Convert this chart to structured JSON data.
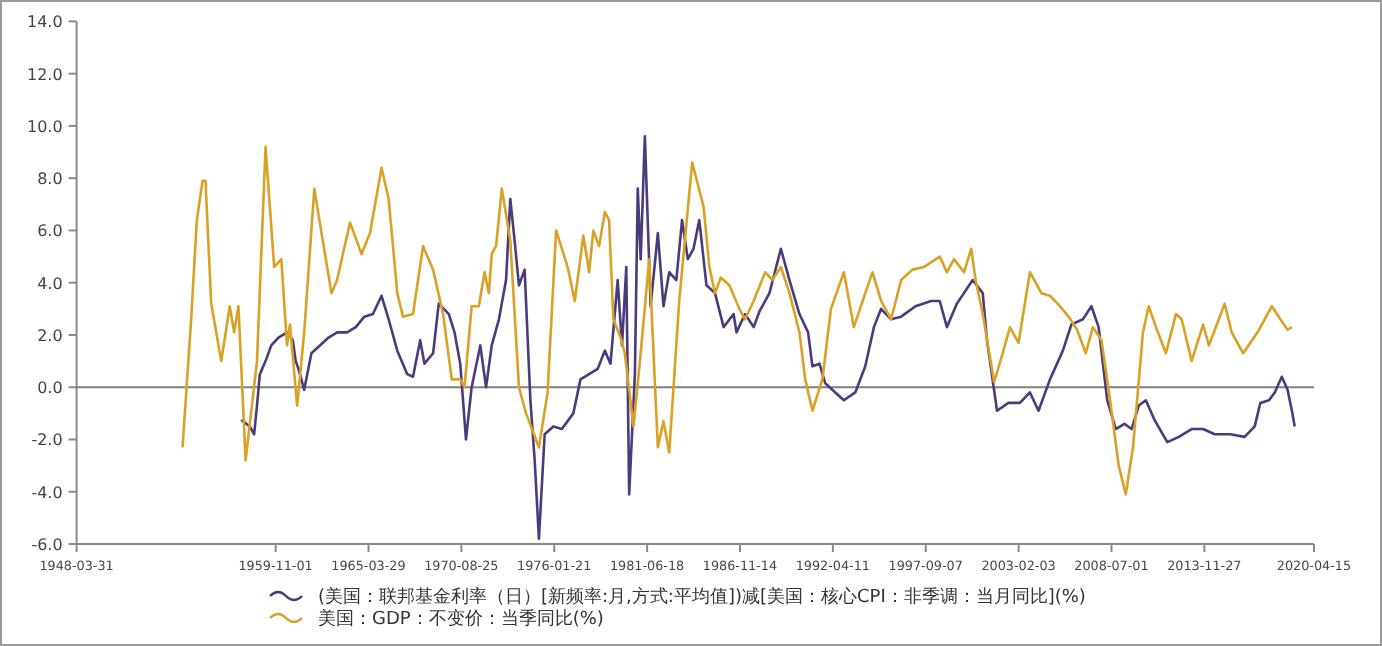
{
  "chart_data": {
    "type": "line",
    "legend": "bottom",
    "marker": "none",
    "line_style": "solid",
    "xlim": [
      "1948-03-31",
      "2020-04-15"
    ],
    "xticks": [
      "1948-03-31",
      "1959-11-01",
      "1965-03-29",
      "1970-08-25",
      "1976-01-21",
      "1981-06-18",
      "1986-11-14",
      "1992-04-11",
      "1997-09-07",
      "2003-02-03",
      "2008-07-01",
      "2013-11-27",
      "2020-04-15"
    ],
    "ylim": [
      -6,
      14
    ],
    "yticks": [
      {
        "value": -6,
        "label": "-6.0"
      },
      {
        "value": -4,
        "label": "-4.0"
      },
      {
        "value": -2,
        "label": "-2.0"
      },
      {
        "value": 0,
        "label": "0.0"
      },
      {
        "value": 2,
        "label": "2.0"
      },
      {
        "value": 4,
        "label": "4.0"
      },
      {
        "value": 6,
        "label": "6.0"
      },
      {
        "value": 8,
        "label": "8.0"
      },
      {
        "value": 10,
        "label": "10.0"
      },
      {
        "value": 12,
        "label": "12.0"
      },
      {
        "value": 14,
        "label": "14.0"
      }
    ],
    "ref_lines": [
      {
        "axis": "y",
        "value": 0,
        "color": "#808080"
      }
    ],
    "series": [
      {
        "name": "(美国：联邦基金利率（日）[新频率:月,方式:平均值])减[美国：核心CPI：非季调：当月同比](%)",
        "color": "#4b3b7c",
        "x": [
          "1957-11",
          "1958-05",
          "1958-08",
          "1958-10",
          "1958-12",
          "1959-04",
          "1959-08",
          "1960-01",
          "1960-07",
          "1960-11",
          "1961-01",
          "1961-03",
          "1961-07",
          "1961-12",
          "1962-06",
          "1962-12",
          "1963-06",
          "1964-01",
          "1964-07",
          "1965-01",
          "1965-07",
          "1966-01",
          "1966-06",
          "1966-12",
          "1967-07",
          "1967-11",
          "1968-04",
          "1968-07",
          "1969-01",
          "1969-05",
          "1969-12",
          "1970-04",
          "1970-08",
          "1970-12",
          "1971-04",
          "1971-10",
          "1972-02",
          "1972-06",
          "1972-11",
          "1973-04",
          "1973-07",
          "1973-10",
          "1974-01",
          "1974-05",
          "1974-09",
          "1974-12",
          "1975-03",
          "1975-07",
          "1976-01",
          "1976-07",
          "1977-03",
          "1977-08",
          "1978-02",
          "1978-08",
          "1979-01",
          "1979-05",
          "1979-10",
          "1980-01",
          "1980-04",
          "1980-06",
          "1980-10",
          "1980-12",
          "1981-02",
          "1981-05",
          "1981-09",
          "1982-02",
          "1982-06",
          "1982-10",
          "1983-03",
          "1983-07",
          "1983-11",
          "1984-03",
          "1984-07",
          "1984-12",
          "1985-06",
          "1985-12",
          "1986-07",
          "1986-09",
          "1987-03",
          "1987-09",
          "1988-01",
          "1988-08",
          "1989-04",
          "1989-10",
          "1990-05",
          "1990-11",
          "1991-02",
          "1991-07",
          "1991-11",
          "1992-06",
          "1992-12",
          "1993-08",
          "1994-03",
          "1994-09",
          "1995-02",
          "1995-09",
          "1996-04",
          "1997-02",
          "1998-01",
          "1998-07",
          "1998-12",
          "1999-07",
          "2000-06",
          "2001-01",
          "2001-04",
          "2001-11",
          "2002-07",
          "2003-03",
          "2003-10",
          "2004-04",
          "2004-12",
          "2005-09",
          "2006-03",
          "2006-11",
          "2007-05",
          "2007-10",
          "2008-04",
          "2008-10",
          "2009-04",
          "2009-09",
          "2010-02",
          "2010-07",
          "2011-01",
          "2011-10",
          "2012-06",
          "2013-03",
          "2013-11",
          "2014-07",
          "2015-06",
          "2016-04",
          "2016-11",
          "2017-03",
          "2017-09",
          "2018-01",
          "2018-06",
          "2018-10",
          "2019-01",
          "2019-03"
        ],
        "values": [
          -1.25,
          -1.5,
          -1.8,
          -0.7,
          0.5,
          1.0,
          1.6,
          1.9,
          2.1,
          1.8,
          1.0,
          0.7,
          -0.1,
          1.3,
          1.6,
          1.9,
          2.1,
          2.1,
          2.3,
          2.7,
          2.8,
          3.5,
          2.6,
          1.4,
          0.5,
          0.4,
          1.8,
          0.9,
          1.3,
          3.2,
          2.8,
          2.1,
          0.9,
          -2.0,
          0.0,
          1.6,
          0.0,
          1.6,
          2.6,
          4.1,
          7.2,
          5.6,
          3.9,
          4.5,
          -0.5,
          -2.8,
          -5.8,
          -1.8,
          -1.5,
          -1.6,
          -1.0,
          0.3,
          0.5,
          0.7,
          1.4,
          0.9,
          4.1,
          1.6,
          4.6,
          -4.1,
          0.5,
          7.6,
          4.9,
          9.6,
          3.1,
          5.9,
          3.1,
          4.4,
          4.1,
          6.4,
          4.9,
          5.3,
          6.4,
          3.9,
          3.6,
          2.3,
          2.8,
          2.1,
          2.8,
          2.3,
          2.9,
          3.6,
          5.3,
          4.1,
          2.8,
          2.1,
          0.8,
          0.9,
          0.15,
          -0.2,
          -0.5,
          -0.2,
          0.8,
          2.3,
          3.0,
          2.6,
          2.7,
          3.1,
          3.3,
          3.3,
          2.3,
          3.2,
          4.1,
          3.6,
          1.8,
          -0.9,
          -0.6,
          -0.6,
          -0.2,
          -0.9,
          0.3,
          1.4,
          2.4,
          2.6,
          3.1,
          2.3,
          -0.5,
          -1.6,
          -1.4,
          -1.6,
          -0.7,
          -0.5,
          -1.25,
          -2.1,
          -1.9,
          -1.6,
          -1.6,
          -1.8,
          -1.8,
          -1.9,
          -1.5,
          -0.6,
          -0.5,
          -0.2,
          0.4,
          -0.1,
          -0.9,
          -1.5
        ]
      },
      {
        "name": "美国：GDP：不变价：当季同比(%)",
        "color": "#d9a125",
        "x": [
          "1954-06",
          "1954-12",
          "1955-04",
          "1955-08",
          "1955-10",
          "1956-02",
          "1956-09",
          "1957-03",
          "1957-06",
          "1957-09",
          "1958-02",
          "1958-10",
          "1959-04",
          "1959-10",
          "1960-03",
          "1960-07",
          "1960-09",
          "1961-02",
          "1961-07",
          "1962-02",
          "1962-08",
          "1963-02",
          "1963-06",
          "1963-10",
          "1964-03",
          "1964-11",
          "1965-05",
          "1966-01",
          "1966-06",
          "1966-12",
          "1967-04",
          "1967-11",
          "1968-06",
          "1969-01",
          "1969-08",
          "1970-02",
          "1970-08",
          "1970-11",
          "1971-04",
          "1971-09",
          "1972-01",
          "1972-04",
          "1972-06",
          "1972-09",
          "1973-01",
          "1973-07",
          "1974-01",
          "1974-06",
          "1975-03",
          "1975-09",
          "1976-03",
          "1976-11",
          "1977-04",
          "1977-10",
          "1978-02",
          "1978-05",
          "1978-09",
          "1979-01",
          "1979-04",
          "1979-07",
          "1979-12",
          "1980-03",
          "1980-09",
          "1981-02",
          "1981-08",
          "1982-02",
          "1982-06",
          "1982-10",
          "1983-05",
          "1984-02",
          "1984-10",
          "1985-02",
          "1985-06",
          "1985-10",
          "1986-04",
          "1986-11",
          "1987-03",
          "1987-09",
          "1988-05",
          "1988-10",
          "1989-04",
          "1989-10",
          "1990-05",
          "1990-09",
          "1991-02",
          "1991-09",
          "1992-03",
          "1992-12",
          "1993-07",
          "1994-03",
          "1994-08",
          "1995-02",
          "1995-09",
          "1996-04",
          "1996-12",
          "1997-08",
          "1998-07",
          "1998-12",
          "1999-05",
          "1999-12",
          "2000-05",
          "2000-08",
          "2001-01",
          "2001-09",
          "2002-03",
          "2002-08",
          "2003-02",
          "2003-10",
          "2004-06",
          "2004-12",
          "2005-07",
          "2006-01",
          "2006-07",
          "2007-01",
          "2007-06",
          "2007-12",
          "2008-06",
          "2008-12",
          "2009-05",
          "2009-10",
          "2010-05",
          "2010-09",
          "2011-02",
          "2011-09",
          "2012-04",
          "2012-08",
          "2013-03",
          "2013-11",
          "2014-03",
          "2014-10",
          "2015-02",
          "2015-07",
          "2016-03",
          "2017-01",
          "2017-11",
          "2018-05",
          "2018-10",
          "2019-01"
        ],
        "values": [
          -2.3,
          2.6,
          6.4,
          7.9,
          7.9,
          3.2,
          1.0,
          3.1,
          2.1,
          3.1,
          -2.8,
          1.0,
          9.2,
          4.6,
          4.9,
          1.6,
          2.4,
          -0.7,
          2.1,
          7.6,
          5.6,
          3.6,
          4.1,
          5.1,
          6.3,
          5.1,
          5.9,
          8.4,
          7.2,
          3.6,
          2.7,
          2.8,
          5.4,
          4.5,
          2.8,
          0.3,
          0.3,
          0.0,
          3.1,
          3.1,
          4.4,
          3.6,
          5.1,
          5.4,
          7.6,
          5.6,
          0.0,
          -1.0,
          -2.3,
          -0.2,
          6.0,
          4.6,
          3.3,
          5.8,
          4.4,
          6.0,
          5.4,
          6.7,
          6.4,
          2.6,
          1.9,
          1.3,
          -1.5,
          1.3,
          4.9,
          -2.3,
          -1.3,
          -2.5,
          3.3,
          8.6,
          6.9,
          4.6,
          3.6,
          4.2,
          3.9,
          3.0,
          2.6,
          3.3,
          4.4,
          4.1,
          4.6,
          3.6,
          2.1,
          0.3,
          -0.9,
          0.3,
          3.0,
          4.4,
          2.3,
          3.6,
          4.4,
          3.3,
          2.6,
          4.1,
          4.5,
          4.6,
          5.0,
          4.4,
          4.9,
          4.4,
          5.3,
          4.1,
          2.8,
          0.2,
          1.3,
          2.3,
          1.7,
          4.4,
          3.6,
          3.5,
          3.1,
          2.7,
          2.2,
          1.3,
          2.3,
          1.8,
          -0.5,
          -3.0,
          -4.1,
          -2.3,
          2.1,
          3.1,
          2.3,
          1.3,
          2.8,
          2.6,
          1.0,
          2.4,
          1.6,
          2.6,
          3.2,
          2.1,
          1.3,
          2.1,
          3.1,
          2.6,
          2.2,
          2.3
        ]
      }
    ]
  }
}
